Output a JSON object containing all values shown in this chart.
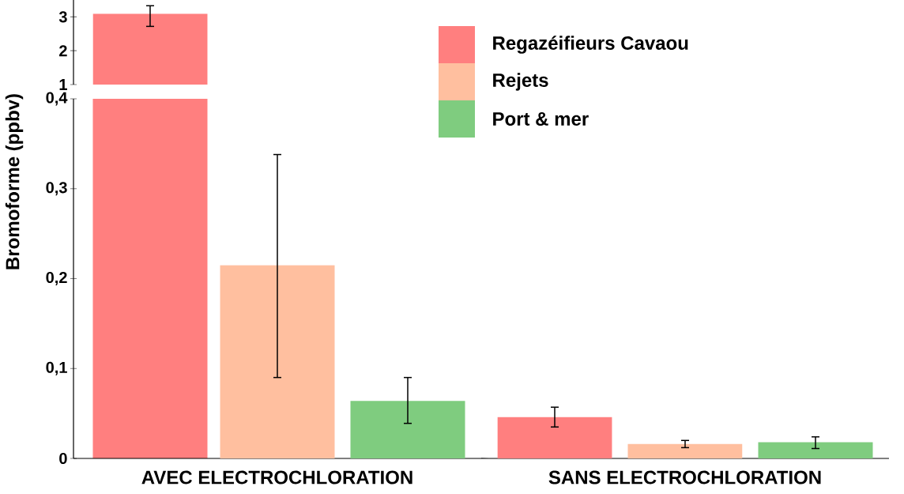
{
  "chart_data": [
    {
      "type": "bar",
      "categories": [
        null
      ],
      "tick_labels": "y",
      "ylim": [
        1,
        3.5
      ],
      "yticks": [
        1,
        2,
        3
      ],
      "series": [
        {
          "color": "#ff7f7f",
          "values": [
            3.09
          ],
          "errors": [
            [
              2.72,
              3.33
            ]
          ]
        }
      ]
    },
    {
      "type": "bar",
      "categories": [
        "AVEC ELECTROCHLORATION",
        "SANS ELECTROCHLORATION"
      ],
      "ylabel": "Bromoforme (ppbv)",
      "ylim": [
        0,
        0.4
      ],
      "legend": "top right",
      "yticks": [
        0,
        {
          "value": 0.1,
          "label": "0,1"
        },
        {
          "value": 0.2,
          "label": "0,2"
        },
        {
          "value": 0.3,
          "label": "0,3"
        },
        {
          "value": 0.4,
          "label": "0,4"
        }
      ],
      "series": [
        {
          "name": "Regazéifieurs Cavaou",
          "color": "#ff7f7f",
          "values": [
            null,
            0.046
          ],
          "errors": [
            null,
            [
              0.035,
              0.057
            ]
          ]
        },
        {
          "name": "Rejets",
          "color": "#ffbf9f",
          "values": [
            0.215,
            0.016
          ],
          "errors": [
            [
              0.09,
              0.338
            ],
            [
              0.012,
              0.02
            ]
          ]
        },
        {
          "name": "Port & mer",
          "color": "#7fcc7f",
          "values": [
            0.064,
            0.018
          ],
          "errors": [
            [
              0.039,
              0.09
            ],
            [
              0.011,
              0.024
            ]
          ]
        }
      ]
    }
  ]
}
